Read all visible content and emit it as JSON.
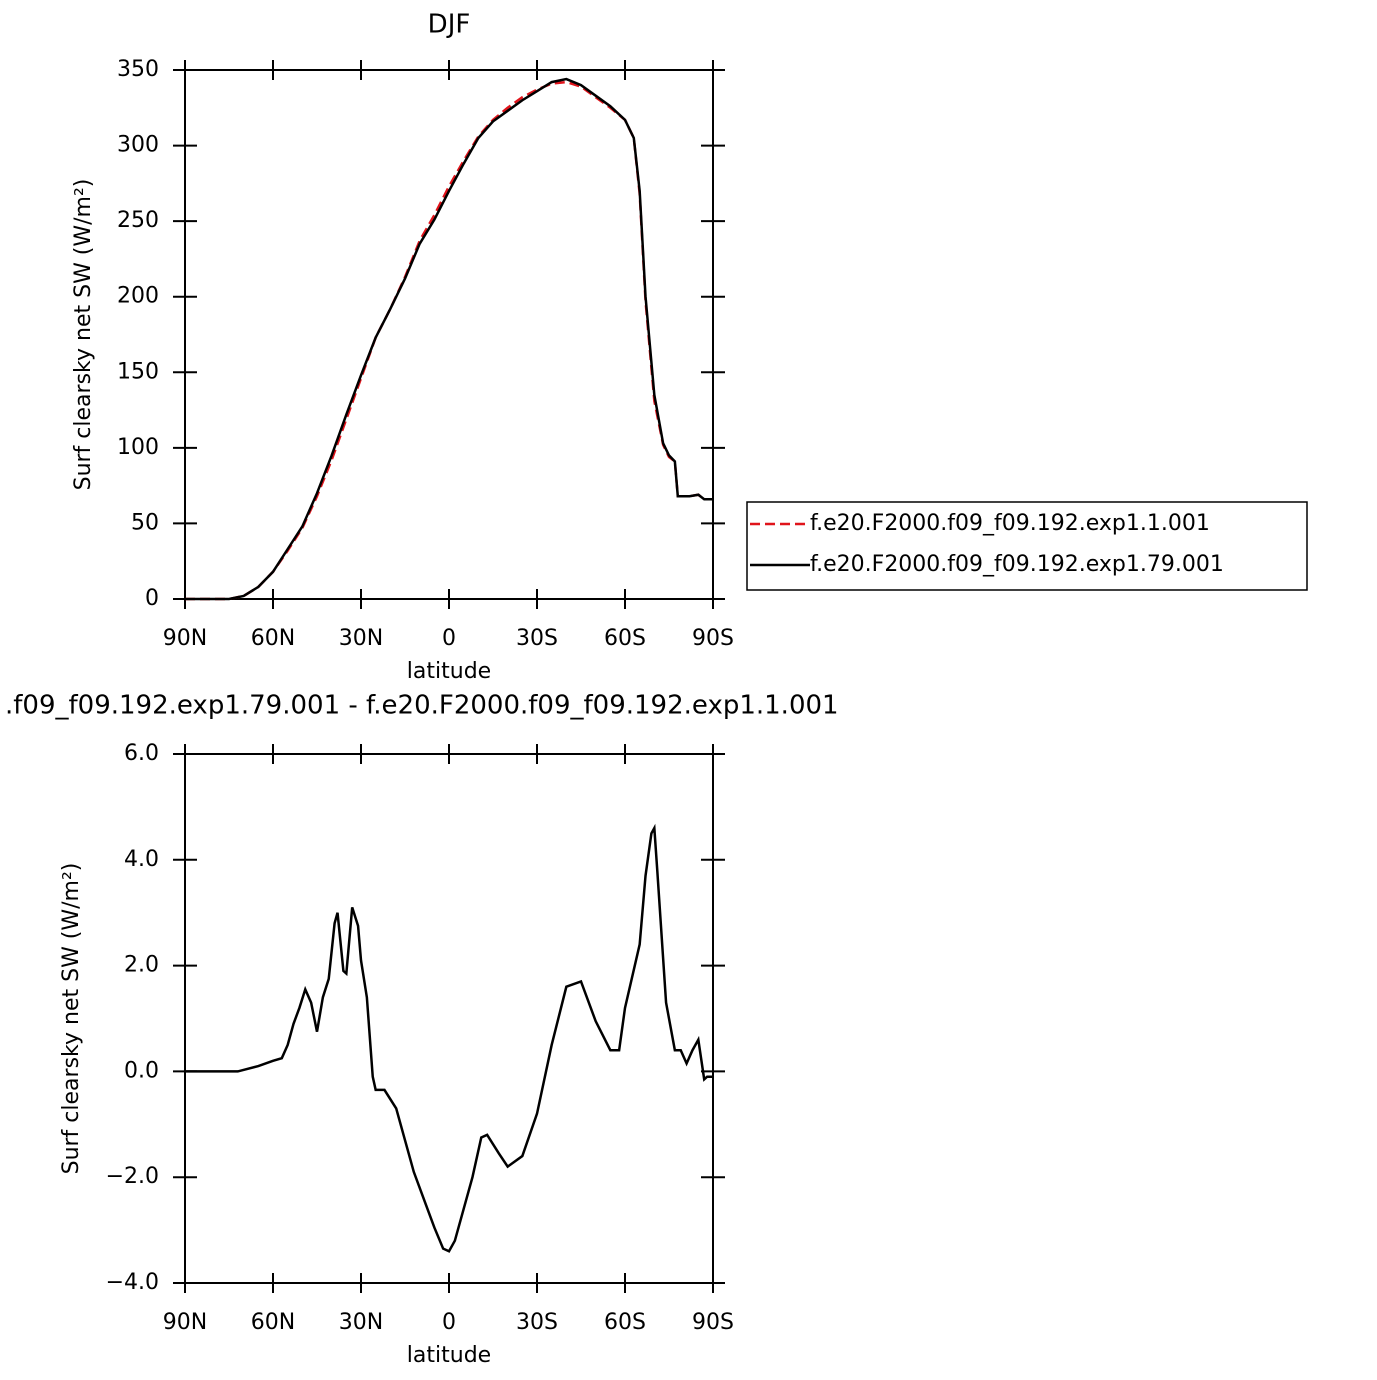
{
  "chart_data": [
    {
      "type": "line",
      "title": "DJF",
      "xlabel": "latitude",
      "ylabel": "Surf clearsky net SW (W/m²)",
      "x": [
        90,
        75,
        70,
        65,
        60,
        55,
        50,
        45,
        40,
        35,
        30,
        25,
        20,
        15,
        10,
        5,
        0,
        -5,
        -10,
        -15,
        -20,
        -25,
        -30,
        -35,
        -40,
        -45,
        -50,
        -55,
        -60,
        -63,
        -65,
        -67,
        -70,
        -73,
        -75,
        -77,
        -78,
        -82,
        -85,
        -87,
        -90
      ],
      "series": [
        {
          "name": "f.e20.F2000.f09_f09.192.exp1.1.001",
          "color": "#e0141b",
          "linestyle": "dashed",
          "values": [
            0,
            0,
            2,
            8,
            18,
            32,
            47,
            68,
            92,
            119,
            146,
            173,
            192,
            213,
            237,
            254,
            273,
            290,
            306,
            317,
            325,
            332,
            337,
            341,
            342,
            339,
            332,
            325,
            317,
            305,
            268,
            197,
            131,
            102,
            94,
            91,
            68,
            68,
            69,
            66,
            66
          ]
        },
        {
          "name": "f.e20.F2000.f09_f09.192.exp1.79.001",
          "color": "#000000",
          "linestyle": "solid",
          "values": [
            0,
            0,
            2,
            8,
            18,
            33,
            48,
            70,
            95,
            122,
            148,
            173,
            192,
            212,
            235,
            251,
            270,
            288,
            305,
            316,
            323,
            330,
            336,
            342,
            344,
            340,
            333,
            326,
            317,
            305,
            270,
            200,
            135,
            103,
            95,
            91,
            68,
            68,
            69,
            66,
            66
          ]
        }
      ],
      "xlim": [
        90,
        -90
      ],
      "xticks": [
        {
          "value": 90,
          "label": "90N"
        },
        {
          "value": 60,
          "label": "60N"
        },
        {
          "value": 30,
          "label": "30N"
        },
        0,
        {
          "value": -30,
          "label": "30S"
        },
        {
          "value": -60,
          "label": "60S"
        },
        {
          "value": -90,
          "label": "90S"
        }
      ],
      "ylim": [
        0,
        350
      ],
      "yticks": [
        0,
        50,
        100,
        150,
        200,
        250,
        300,
        350
      ],
      "legend": "right"
    },
    {
      "type": "line",
      "title": ".f09_f09.192.exp1.79.001 - f.e20.F2000.f09_f09.192.exp1.1.001",
      "xlabel": "latitude",
      "ylabel": "Surf clearsky net SW (W/m²)",
      "x": [
        90,
        72,
        65,
        60,
        57,
        55,
        53,
        51,
        49,
        47,
        45,
        43,
        41,
        39,
        38,
        36,
        35,
        33,
        31,
        30,
        28,
        26,
        25,
        22,
        18,
        15,
        12,
        8,
        5,
        2,
        0,
        -2,
        -5,
        -8,
        -11,
        -13,
        -17,
        -20,
        -25,
        -30,
        -35,
        -40,
        -45,
        -50,
        -55,
        -58,
        -60,
        -65,
        -67,
        -69,
        -70,
        -71,
        -74,
        -77,
        -79,
        -81,
        -83,
        -85,
        -87,
        -88,
        -90
      ],
      "series": [
        {
          "color": "#000000",
          "linestyle": "solid",
          "values": [
            0,
            0,
            0.1,
            0.2,
            0.25,
            0.5,
            0.9,
            1.2,
            1.55,
            1.3,
            0.75,
            1.4,
            1.75,
            2.8,
            3.0,
            1.9,
            1.85,
            3.1,
            2.75,
            2.1,
            1.4,
            -0.1,
            -0.35,
            -0.35,
            -0.7,
            -1.3,
            -1.9,
            -2.5,
            -2.95,
            -3.35,
            -3.4,
            -3.2,
            -2.6,
            -2.0,
            -1.25,
            -1.2,
            -1.55,
            -1.8,
            -1.6,
            -0.8,
            0.5,
            1.6,
            1.7,
            0.95,
            0.4,
            0.4,
            1.2,
            2.4,
            3.7,
            4.5,
            4.6,
            3.8,
            1.3,
            0.4,
            0.4,
            0.15,
            0.4,
            0.6,
            -0.15,
            -0.1,
            -0.1
          ]
        }
      ],
      "xlim": [
        90,
        -90
      ],
      "xticks": [
        {
          "value": 90,
          "label": "90N"
        },
        {
          "value": 60,
          "label": "60N"
        },
        {
          "value": 30,
          "label": "30N"
        },
        0,
        {
          "value": -30,
          "label": "30S"
        },
        {
          "value": -60,
          "label": "60S"
        },
        {
          "value": -90,
          "label": "90S"
        }
      ],
      "ylim": [
        -4,
        6
      ],
      "yticks": [
        {
          "value": -4,
          "label": "−4.0"
        },
        {
          "value": -2,
          "label": "−2.0"
        },
        {
          "value": 0,
          "label": "0.0"
        },
        {
          "value": 2,
          "label": "2.0"
        },
        {
          "value": 4,
          "label": "4.0"
        },
        {
          "value": 6,
          "label": "6.0"
        }
      ]
    }
  ]
}
